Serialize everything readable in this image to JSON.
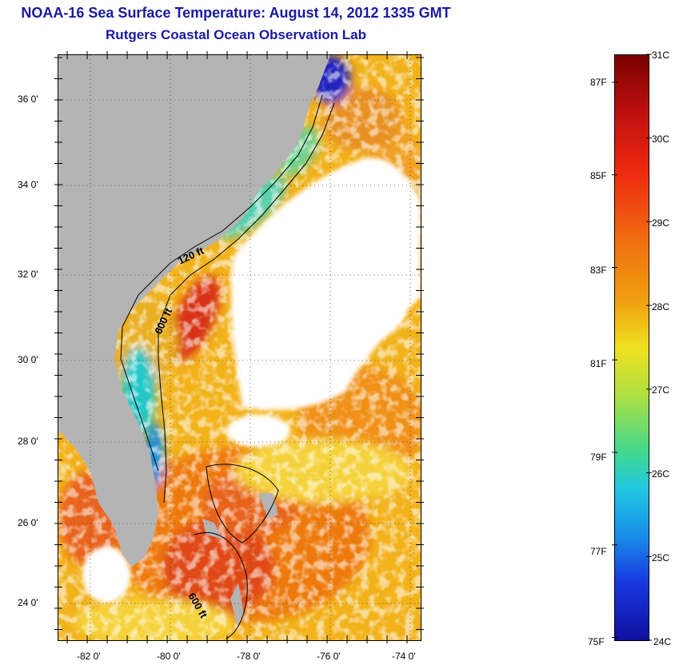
{
  "header": {
    "title": "NOAA-16 Sea Surface Temperature:  August 14, 2012 1335 GMT",
    "subtitle": "Rutgers Coastal Ocean Observation Lab"
  },
  "map": {
    "lat_labels": [
      "36 0'",
      "34 0'",
      "32 0'",
      "30 0'",
      "28 0'",
      "26 0'",
      "24 0'"
    ],
    "lon_labels": [
      "-82 0'",
      "-80 0'",
      "-78 0'",
      "-76 0'",
      "-74 0'"
    ],
    "isobath_labels": [
      "120 ft",
      "600 ft",
      "600 ft"
    ],
    "colors": {
      "land": "#b4b4b4",
      "cloud": "#ffffff"
    }
  },
  "colorbar": {
    "fahrenheit_labels": [
      "87F",
      "85F",
      "83F",
      "81F",
      "79F",
      "77F",
      "75F"
    ],
    "celsius_labels": [
      "31C",
      "30C",
      "29C",
      "28C",
      "27C",
      "26C",
      "25C",
      "24C"
    ],
    "range_c": [
      24,
      31
    ]
  }
}
